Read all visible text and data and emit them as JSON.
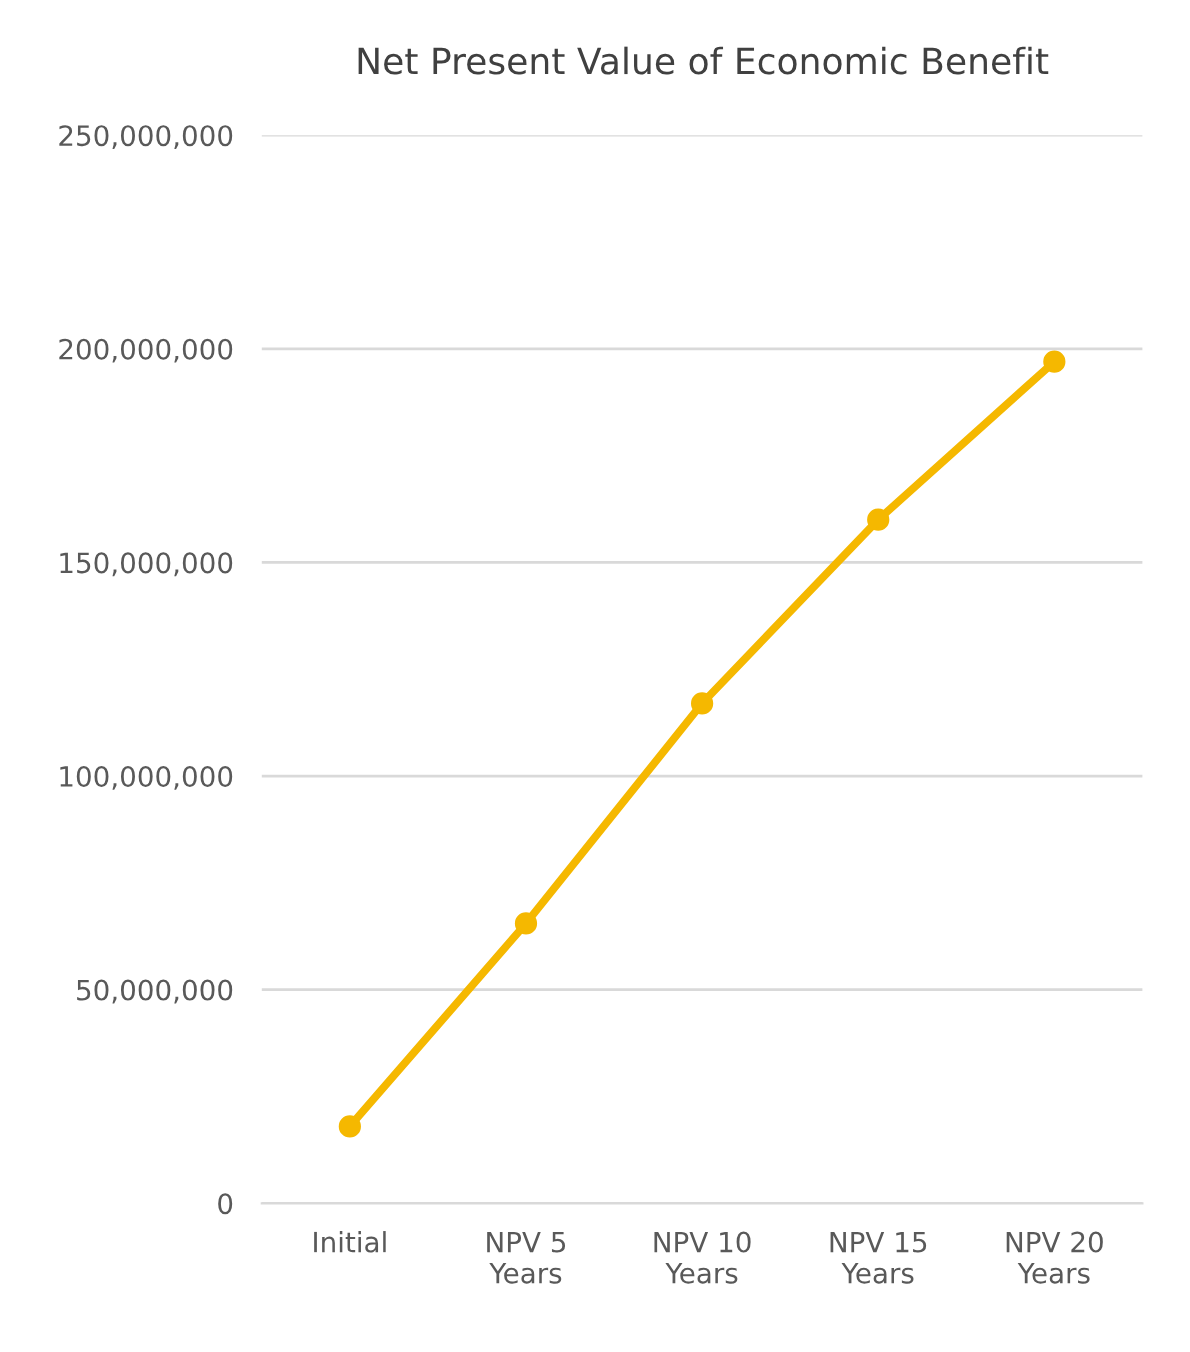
{
  "chart_data": {
    "type": "line",
    "title": "Net Present Value of Economic Benefit",
    "categories": [
      "Initial",
      "NPV 5\nYears",
      "NPV 10\nYears",
      "NPV 15\nYears",
      "NPV 20\nYears"
    ],
    "series": [
      {
        "color": "#f5b800",
        "values": [
          18000000,
          65500000,
          117000000,
          160000000,
          197000000
        ]
      }
    ],
    "ylim": [
      0,
      250000000
    ],
    "yticks": [
      {
        "value": 0,
        "label": "0"
      },
      {
        "value": 50000000,
        "label": "50,000,000"
      },
      {
        "value": 100000000,
        "label": "100,000,000"
      },
      {
        "value": 150000000,
        "label": "150,000,000"
      },
      {
        "value": 200000000,
        "label": "200,000,000"
      },
      {
        "value": 250000000,
        "label": "250,000,000"
      }
    ],
    "grid": "y",
    "marker": "circle",
    "line_style": "solid"
  }
}
